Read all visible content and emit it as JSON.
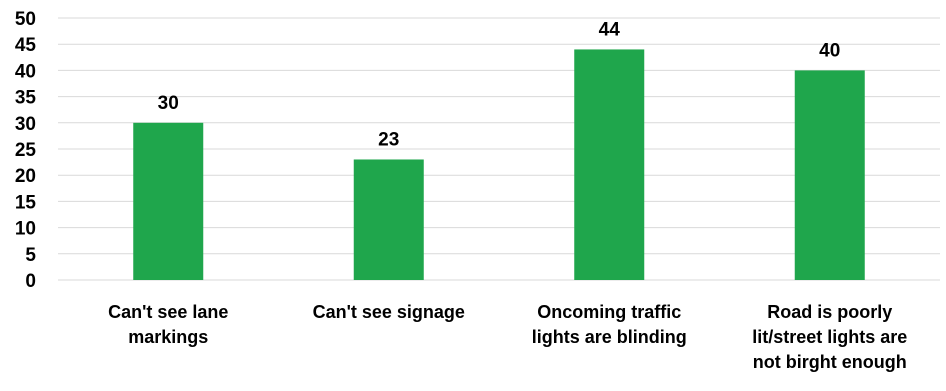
{
  "chart_data": {
    "type": "bar",
    "categories": [
      "Can't see lane\nmarkings",
      "Can't see signage",
      "Oncoming traffic\nlights are blinding",
      "Road is poorly\nlit/street lights are\nnot birght enough"
    ],
    "values": [
      30,
      23,
      44,
      40
    ],
    "data_labels": [
      "30",
      "23",
      "44",
      "40"
    ],
    "ylim": [
      0,
      50
    ],
    "yticks": [
      0,
      5,
      10,
      15,
      20,
      25,
      30,
      35,
      40,
      45,
      50
    ],
    "grid": true,
    "bar_color": "#1fa64c",
    "grid_color": "#d9d9d9",
    "title": "",
    "xlabel": "",
    "ylabel": ""
  }
}
